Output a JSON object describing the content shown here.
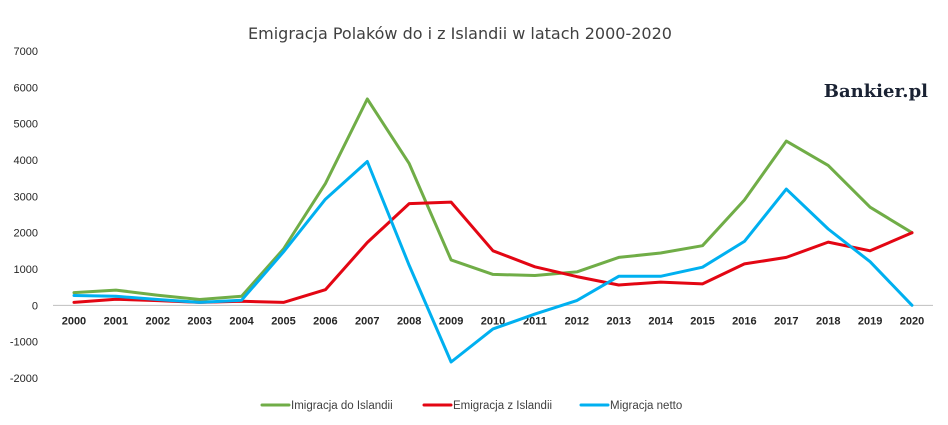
{
  "chart_data": {
    "type": "line",
    "title": "Emigracja Polaków do i z Islandii w latach 2000-2020",
    "xlabel": "",
    "ylabel": "",
    "x": [
      "2000",
      "2001",
      "2002",
      "2003",
      "2004",
      "2005",
      "2006",
      "2007",
      "2008",
      "2009",
      "2010",
      "2011",
      "2012",
      "2013",
      "2014",
      "2015",
      "2016",
      "2017",
      "2018",
      "2019",
      "2020"
    ],
    "ylim": [
      -2000,
      7000
    ],
    "yticks": [
      "7000",
      "6000",
      "5000",
      "4000",
      "3000",
      "2000",
      "1000",
      "0",
      "-1000",
      "-2000"
    ],
    "grid": false,
    "legend_position": "bottom",
    "series": [
      {
        "name": "Imigracja do Islandii",
        "color": "#70ad47",
        "values": [
          350,
          420,
          280,
          160,
          250,
          1550,
          3350,
          5680,
          3900,
          1250,
          850,
          820,
          920,
          1320,
          1440,
          1640,
          2900,
          4520,
          3850,
          2700,
          2000
        ]
      },
      {
        "name": "Emigracja z Islandii",
        "color": "#e30613",
        "values": [
          80,
          170,
          130,
          80,
          110,
          80,
          430,
          1730,
          2800,
          2840,
          1500,
          1060,
          790,
          560,
          640,
          590,
          1140,
          1320,
          1740,
          1500,
          2000
        ]
      },
      {
        "name": "Migracja netto",
        "color": "#00b0f0",
        "values": [
          270,
          250,
          160,
          80,
          140,
          1470,
          2920,
          3960,
          1100,
          -1560,
          -650,
          -240,
          130,
          800,
          800,
          1050,
          1760,
          3200,
          2100,
          1200,
          0
        ]
      }
    ]
  },
  "brand": {
    "logo_text": "Bankier.pl"
  }
}
